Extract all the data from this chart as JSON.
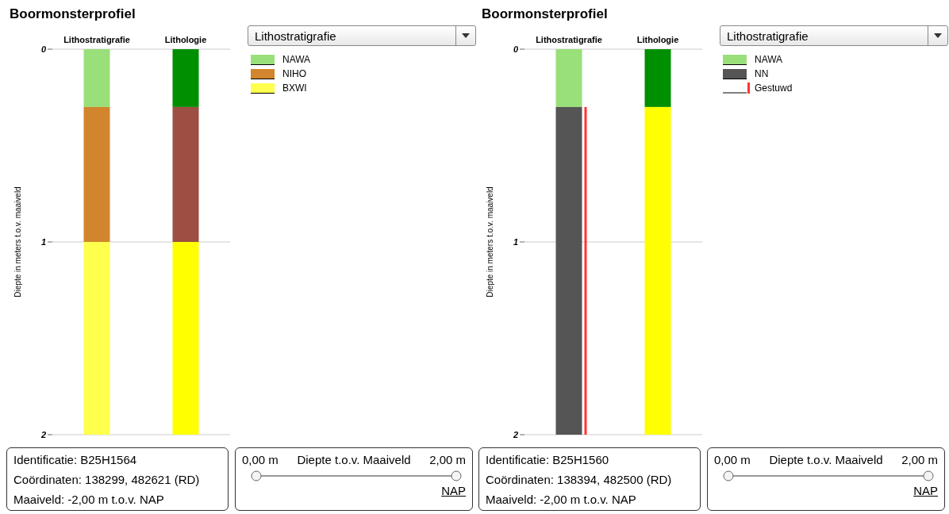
{
  "chart_data": [
    {
      "type": "bar",
      "title": "Boormonsterprofiel",
      "ylabel": "Diepte in meters t.o.v. maaiveld",
      "categories": [
        "Lithostratigrafie",
        "Lithologie"
      ],
      "ylim": [
        2,
        0
      ],
      "yticks": [
        0,
        1,
        2
      ],
      "grid": "y",
      "legend": "top right",
      "series": [
        {
          "name": "NAWA",
          "color": "#99e07a",
          "colors": [
            "#99e07a",
            "#008f00"
          ],
          "values": [
            0.3,
            0.3
          ],
          "base": [
            0,
            0
          ]
        },
        {
          "name": "NIHO",
          "color": "#d2852c",
          "colors": [
            "#d2852c",
            "#9c4f42"
          ],
          "values": [
            0.7,
            0.7
          ],
          "base": [
            0.3,
            0.3
          ]
        },
        {
          "name": "BXWI",
          "color": "#ffff4d",
          "colors": [
            "#ffff4d",
            "#ffff00"
          ],
          "values": [
            1.0,
            1.0
          ],
          "base": [
            1.0,
            1.0
          ]
        }
      ],
      "annotations": [
        "Lithostratigrafie",
        "Identificatie: B25H1564",
        "Coördinaten: 138299, 482621 (RD)",
        "Maaiveld: -2,00 m t.o.v. NAP",
        "0,00 m",
        "Diepte t.o.v. Maaiveld",
        "2,00 m",
        "NAP"
      ]
    },
    {
      "type": "bar",
      "title": "Boormonsterprofiel",
      "ylabel": "Diepte in meters t.o.v. maaiveld",
      "categories": [
        "Lithostratigrafie",
        "Lithologie"
      ],
      "ylim": [
        2,
        0
      ],
      "yticks": [
        0,
        1,
        2
      ],
      "grid": "y",
      "legend": "top right",
      "series": [
        {
          "name": "NAWA",
          "color": "#99e07a",
          "colors": [
            "#99e07a",
            "#008f00"
          ],
          "values": [
            0.3,
            0.3
          ],
          "base": [
            0,
            0
          ]
        },
        {
          "name": "NN",
          "color": "#555555",
          "colors": [
            "#555555",
            "#ffff00"
          ],
          "values": [
            1.7,
            1.7
          ],
          "base": [
            0.3,
            0.3
          ]
        },
        {
          "name": "Gestuwd",
          "color": "#ff3333",
          "values": [
            1.7,
            null
          ],
          "base": [
            0.3,
            null
          ]
        }
      ],
      "annotations": [
        "Lithostratigrafie",
        "Identificatie: B25H1560",
        "Coördinaten: 138394, 482500 (RD)",
        "Maaiveld: -2,00 m t.o.v. NAP",
        "0,00 m",
        "Diepte t.o.v. Maaiveld",
        "2,00 m",
        "NAP"
      ]
    }
  ]
}
